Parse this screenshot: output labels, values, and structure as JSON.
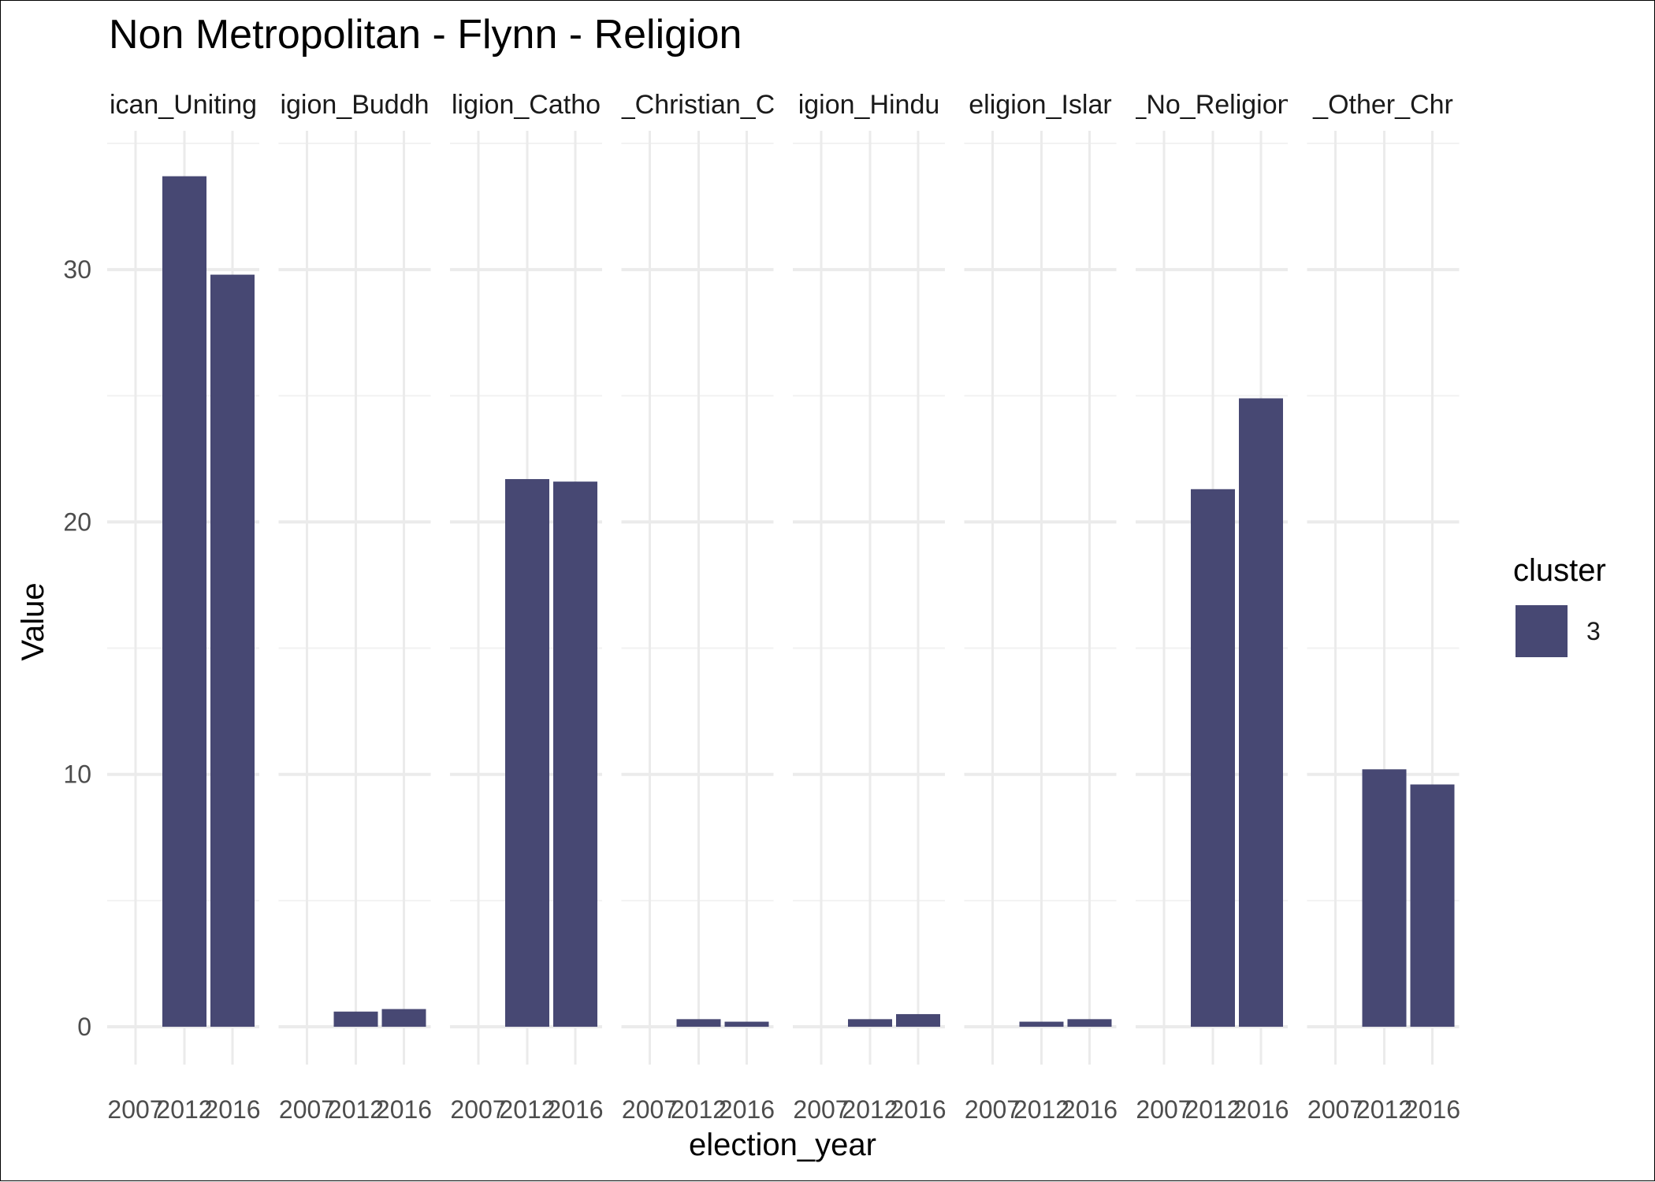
{
  "chart_data": {
    "type": "bar",
    "title": "Non Metropolitan - Flynn - Religion",
    "xlabel": "election_year",
    "ylabel": "Value",
    "categories": [
      "2007",
      "2012",
      "2016"
    ],
    "y_ticks": [
      0,
      10,
      20,
      30
    ],
    "ylim": [
      -1.5,
      35.5
    ],
    "grid": true,
    "legend": {
      "title": "cluster",
      "position": "right",
      "items": [
        {
          "label": "3",
          "color": "#474873"
        }
      ]
    },
    "bar_color": "#474873",
    "facets": [
      {
        "label": "ican_Uniting",
        "values": [
          null,
          33.7,
          29.8
        ]
      },
      {
        "label": "igion_Buddh",
        "values": [
          null,
          0.6,
          0.7
        ]
      },
      {
        "label": "ligion_Catho",
        "values": [
          null,
          21.7,
          21.6
        ]
      },
      {
        "label": "_Christian_C",
        "values": [
          null,
          0.3,
          0.2
        ]
      },
      {
        "label": "igion_Hindu",
        "values": [
          null,
          0.3,
          0.5
        ]
      },
      {
        "label": "eligion_Islar",
        "values": [
          null,
          0.2,
          0.3
        ]
      },
      {
        "label": "_No_Religion",
        "values": [
          null,
          21.3,
          24.9
        ]
      },
      {
        "label": "_Other_Chr",
        "values": [
          null,
          10.2,
          9.6
        ]
      }
    ]
  }
}
